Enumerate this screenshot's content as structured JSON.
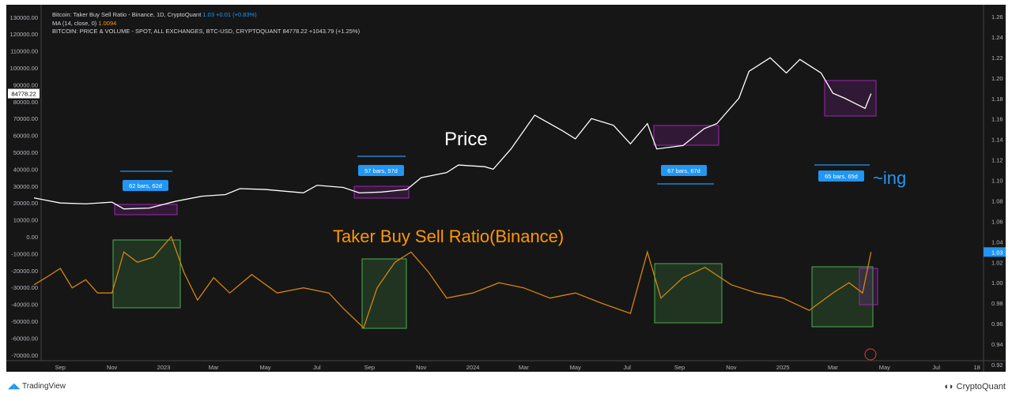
{
  "legend": {
    "line1": "Bitcoin: Taker Buy Sell Ratio - Binance, 1D, CryptoQuant",
    "line1_value": "1.03",
    "line1_change": "+0.01 (+0.83%)",
    "line2": "MA (14, close, 0)",
    "line2_value": "1.0094",
    "line3": "BITCOIN: PRICE & VOLUME - SPOT, ALL EXCHANGES, BTC-USD, CRYPTOQUANT",
    "line3_value": "84778.22",
    "line3_change": "+1043.79 (+1.25%)"
  },
  "annotations": {
    "price": "Price",
    "ratio": "Taker Buy Sell Ratio(Binance)",
    "ing": "~ing",
    "bars1": "62 bars, 62d",
    "bars2": "57 bars, 57d",
    "bars3": "67 bars, 67d",
    "bars4": "65 bars, 65d"
  },
  "footer": {
    "tradingview": "TradingView",
    "cryptoquant": "CryptoQuant"
  },
  "colors": {
    "background": "#161616",
    "price": "#ffffff",
    "ratio": "#d4840e",
    "accent": "#2196f3",
    "green_box": "#4caf50",
    "purple_box": "#9c27b0"
  },
  "chart_data": {
    "type": "line",
    "left_axis": {
      "ticks": [
        130000,
        120000,
        110000,
        100000,
        90000,
        80000,
        70000,
        60000,
        50000,
        40000,
        30000,
        20000,
        10000,
        0,
        -10000,
        -20000,
        -30000,
        -40000,
        -50000,
        -60000,
        -70000
      ],
      "current_label": "84778.22"
    },
    "right_axis": {
      "ticks": [
        1.26,
        1.24,
        1.22,
        1.2,
        1.18,
        1.16,
        1.14,
        1.12,
        1.1,
        1.08,
        1.06,
        1.04,
        1.02,
        1.0,
        0.98,
        0.96,
        0.94,
        0.92
      ],
      "current_label": "1.03"
    },
    "x_ticks": [
      [
        "2022-09-01",
        "Sep"
      ],
      [
        "2022-11-01",
        "Nov"
      ],
      [
        "2023-01-01",
        "2023"
      ],
      [
        "2023-03-01",
        "Mar"
      ],
      [
        "2023-05-01",
        "May"
      ],
      [
        "2023-07-01",
        "Jul"
      ],
      [
        "2023-09-01",
        "Sep"
      ],
      [
        "2023-11-01",
        "Nov"
      ],
      [
        "2024-01-01",
        "2024"
      ],
      [
        "2024-03-01",
        "Mar"
      ],
      [
        "2024-05-01",
        "May"
      ],
      [
        "2024-07-01",
        "Jul"
      ],
      [
        "2024-09-01",
        "Sep"
      ],
      [
        "2024-11-01",
        "Nov"
      ],
      [
        "2025-01-01",
        "2025"
      ],
      [
        "2025-03-01",
        "Mar"
      ],
      [
        "2025-05-01",
        "May"
      ],
      [
        "2025-07-01",
        "Jul"
      ],
      [
        "2025-08-18",
        "18"
      ]
    ],
    "series": [
      {
        "name": "BITCOIN: PRICE & VOLUME - SPOT, ALL EXCHANGES, BTC-USD, CRYPTOQUANT",
        "axis": "left",
        "points": [
          [
            "2022-08-01",
            23000
          ],
          [
            "2022-09-01",
            20000
          ],
          [
            "2022-10-01",
            19500
          ],
          [
            "2022-11-01",
            20500
          ],
          [
            "2022-11-15",
            16500
          ],
          [
            "2022-12-15",
            17000
          ],
          [
            "2023-01-15",
            21000
          ],
          [
            "2023-02-15",
            24000
          ],
          [
            "2023-03-15",
            25000
          ],
          [
            "2023-04-01",
            28500
          ],
          [
            "2023-05-01",
            28000
          ],
          [
            "2023-06-15",
            26000
          ],
          [
            "2023-07-01",
            30500
          ],
          [
            "2023-08-01",
            29200
          ],
          [
            "2023-08-20",
            26000
          ],
          [
            "2023-09-15",
            26500
          ],
          [
            "2023-10-15",
            28000
          ],
          [
            "2023-11-01",
            35000
          ],
          [
            "2023-12-01",
            38000
          ],
          [
            "2023-12-15",
            42500
          ],
          [
            "2024-01-15",
            41500
          ],
          [
            "2024-01-25",
            40000
          ],
          [
            "2024-02-15",
            52000
          ],
          [
            "2024-03-14",
            72000
          ],
          [
            "2024-04-15",
            63000
          ],
          [
            "2024-05-01",
            58000
          ],
          [
            "2024-05-20",
            70000
          ],
          [
            "2024-06-15",
            66000
          ],
          [
            "2024-07-05",
            55000
          ],
          [
            "2024-07-25",
            67000
          ],
          [
            "2024-08-05",
            52000
          ],
          [
            "2024-09-05",
            54000
          ],
          [
            "2024-09-30",
            64000
          ],
          [
            "2024-10-15",
            67000
          ],
          [
            "2024-11-10",
            82000
          ],
          [
            "2024-11-22",
            98000
          ],
          [
            "2024-12-17",
            106000
          ],
          [
            "2025-01-05",
            97000
          ],
          [
            "2025-01-21",
            105000
          ],
          [
            "2025-02-15",
            97000
          ],
          [
            "2025-03-01",
            85000
          ],
          [
            "2025-03-15",
            82000
          ],
          [
            "2025-04-08",
            76000
          ],
          [
            "2025-04-15",
            84778
          ]
        ]
      },
      {
        "name": "Bitcoin: Taker Buy Sell Ratio - Binance",
        "axis": "right",
        "points": [
          [
            "2022-08-01",
            0.998
          ],
          [
            "2022-08-15",
            1.005
          ],
          [
            "2022-09-01",
            1.014
          ],
          [
            "2022-09-15",
            0.995
          ],
          [
            "2022-10-01",
            1.003
          ],
          [
            "2022-10-15",
            0.99
          ],
          [
            "2022-11-01",
            0.99
          ],
          [
            "2022-11-15",
            1.03
          ],
          [
            "2022-12-01",
            1.02
          ],
          [
            "2022-12-20",
            1.025
          ],
          [
            "2023-01-10",
            1.045
          ],
          [
            "2023-01-25",
            1.01
          ],
          [
            "2023-02-10",
            0.983
          ],
          [
            "2023-03-01",
            1.005
          ],
          [
            "2023-03-20",
            0.99
          ],
          [
            "2023-04-15",
            1.008
          ],
          [
            "2023-05-15",
            0.99
          ],
          [
            "2023-06-15",
            0.995
          ],
          [
            "2023-07-15",
            0.99
          ],
          [
            "2023-08-01",
            0.975
          ],
          [
            "2023-08-25",
            0.956
          ],
          [
            "2023-09-10",
            0.995
          ],
          [
            "2023-10-01",
            1.02
          ],
          [
            "2023-10-20",
            1.03
          ],
          [
            "2023-11-10",
            1.01
          ],
          [
            "2023-12-01",
            0.985
          ],
          [
            "2024-01-01",
            0.99
          ],
          [
            "2024-02-01",
            1.0
          ],
          [
            "2024-03-01",
            0.995
          ],
          [
            "2024-04-01",
            0.985
          ],
          [
            "2024-05-01",
            0.99
          ],
          [
            "2024-06-01",
            0.98
          ],
          [
            "2024-07-05",
            0.97
          ],
          [
            "2024-07-25",
            1.03
          ],
          [
            "2024-08-10",
            0.985
          ],
          [
            "2024-09-05",
            1.005
          ],
          [
            "2024-10-01",
            1.015
          ],
          [
            "2024-11-01",
            0.998
          ],
          [
            "2024-12-01",
            0.99
          ],
          [
            "2025-01-01",
            0.985
          ],
          [
            "2025-02-01",
            0.973
          ],
          [
            "2025-03-01",
            0.99
          ],
          [
            "2025-03-20",
            1.0
          ],
          [
            "2025-04-05",
            0.99
          ],
          [
            "2025-04-15",
            1.03
          ]
        ]
      }
    ]
  }
}
